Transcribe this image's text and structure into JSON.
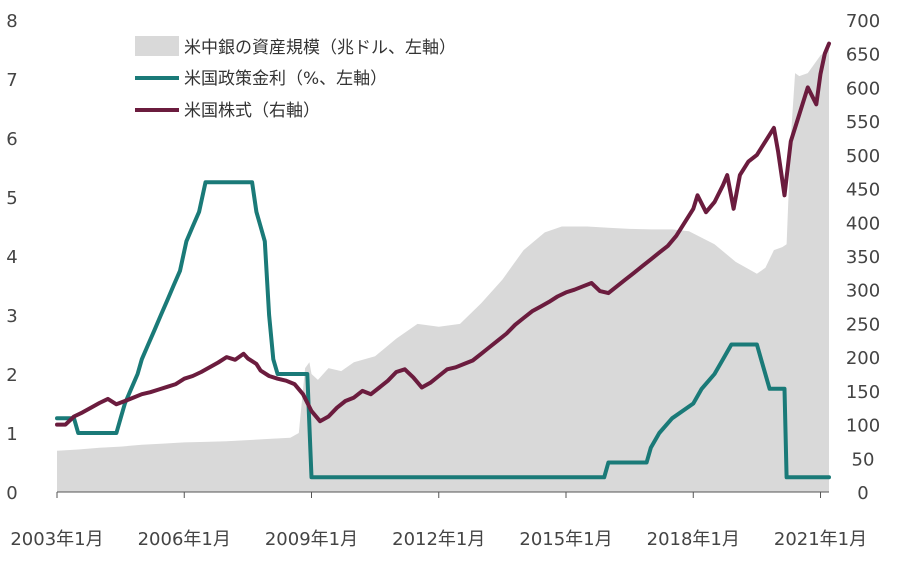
{
  "chart_data": {
    "type": "area",
    "colors": {
      "balance": "#d9d9d9",
      "rate": "#1a7a78",
      "stock": "#6b1c3e"
    },
    "legend": {
      "placement": "top-center",
      "entries": [
        {
          "key": "balance",
          "label": "米中銀の資産規模（兆ドル、左軸）"
        },
        {
          "key": "rate",
          "label": "米国政策金利（%、左軸）"
        },
        {
          "key": "stock",
          "label": "米国株式（右軸）"
        }
      ]
    },
    "y_left": {
      "min": 0,
      "max": 8,
      "ticks": [
        "0",
        "1",
        "2",
        "3",
        "4",
        "5",
        "6",
        "7",
        "8"
      ]
    },
    "y_right": {
      "min": 0,
      "max": 700,
      "ticks": [
        "0",
        "50",
        "100",
        "150",
        "200",
        "250",
        "300",
        "350",
        "400",
        "450",
        "500",
        "550",
        "600",
        "650",
        "700"
      ]
    },
    "x_axis": {
      "min": 2003.0,
      "max": 2021.2,
      "ticks": [
        {
          "value": 2003.0,
          "label": "2003年1月"
        },
        {
          "value": 2006.0,
          "label": "2006年1月"
        },
        {
          "value": 2009.0,
          "label": "2009年1月"
        },
        {
          "value": 2012.0,
          "label": "2012年1月"
        },
        {
          "value": 2015.0,
          "label": "2015年1月"
        },
        {
          "value": 2018.0,
          "label": "2018年1月"
        },
        {
          "value": 2021.0,
          "label": "2021年1月"
        }
      ]
    },
    "grid": false,
    "series": [
      {
        "key": "balance",
        "name": "米中銀の資産規模（兆ドル、左軸）",
        "type": "area",
        "axis": "left",
        "x": [
          2003.0,
          2003.5,
          2004.0,
          2004.5,
          2005.0,
          2005.5,
          2006.0,
          2006.5,
          2007.0,
          2007.5,
          2008.0,
          2008.5,
          2008.7,
          2008.85,
          2008.95,
          2009.0,
          2009.15,
          2009.4,
          2009.7,
          2010.0,
          2010.5,
          2011.0,
          2011.5,
          2012.0,
          2012.5,
          2013.0,
          2013.5,
          2014.0,
          2014.5,
          2014.9,
          2015.5,
          2016.0,
          2016.5,
          2017.0,
          2017.5,
          2017.9,
          2018.5,
          2019.0,
          2019.5,
          2019.7,
          2019.9,
          2020.1,
          2020.2,
          2020.3,
          2020.4,
          2020.5,
          2020.7,
          2021.0,
          2021.2
        ],
        "values": [
          0.7,
          0.72,
          0.75,
          0.77,
          0.8,
          0.82,
          0.84,
          0.85,
          0.86,
          0.88,
          0.9,
          0.92,
          1.0,
          2.1,
          2.2,
          2.0,
          1.9,
          2.1,
          2.05,
          2.2,
          2.3,
          2.6,
          2.85,
          2.8,
          2.85,
          3.2,
          3.6,
          4.1,
          4.4,
          4.5,
          4.5,
          4.48,
          4.46,
          4.45,
          4.45,
          4.42,
          4.2,
          3.9,
          3.7,
          3.8,
          4.1,
          4.15,
          4.2,
          6.0,
          7.1,
          7.05,
          7.1,
          7.4,
          7.5
        ]
      },
      {
        "key": "rate",
        "name": "米国政策金利（%、左軸）",
        "type": "line",
        "axis": "left",
        "x": [
          2003.0,
          2003.4,
          2003.5,
          2004.4,
          2004.5,
          2004.6,
          2004.75,
          2004.9,
          2005.0,
          2005.15,
          2005.3,
          2005.45,
          2005.6,
          2005.75,
          2005.9,
          2006.05,
          2006.2,
          2006.35,
          2006.5,
          2007.6,
          2007.7,
          2007.8,
          2007.9,
          2008.0,
          2008.1,
          2008.2,
          2008.3,
          2008.9,
          2009.0,
          2015.9,
          2016.0,
          2016.9,
          2017.0,
          2017.2,
          2017.5,
          2018.0,
          2018.2,
          2018.5,
          2018.7,
          2018.9,
          2019.5,
          2019.6,
          2019.8,
          2020.15,
          2020.2,
          2021.2
        ],
        "values": [
          1.25,
          1.25,
          1.0,
          1.0,
          1.25,
          1.5,
          1.75,
          2.0,
          2.25,
          2.5,
          2.75,
          3.0,
          3.25,
          3.5,
          3.75,
          4.25,
          4.5,
          4.75,
          5.25,
          5.25,
          4.75,
          4.5,
          4.25,
          3.0,
          2.25,
          2.0,
          2.0,
          2.0,
          0.25,
          0.25,
          0.5,
          0.5,
          0.75,
          1.0,
          1.25,
          1.5,
          1.75,
          2.0,
          2.25,
          2.5,
          2.5,
          2.25,
          1.75,
          1.75,
          0.25,
          0.25
        ]
      },
      {
        "key": "stock",
        "name": "米国株式（右軸）",
        "type": "line",
        "axis": "right",
        "x": [
          2003.0,
          2003.2,
          2003.4,
          2003.6,
          2003.8,
          2004.0,
          2004.2,
          2004.4,
          2004.6,
          2004.8,
          2005.0,
          2005.2,
          2005.4,
          2005.6,
          2005.8,
          2006.0,
          2006.2,
          2006.4,
          2006.6,
          2006.8,
          2007.0,
          2007.2,
          2007.4,
          2007.5,
          2007.7,
          2007.8,
          2008.0,
          2008.2,
          2008.4,
          2008.6,
          2008.8,
          2009.0,
          2009.2,
          2009.4,
          2009.6,
          2009.8,
          2010.0,
          2010.2,
          2010.4,
          2010.6,
          2010.8,
          2011.0,
          2011.2,
          2011.4,
          2011.6,
          2011.8,
          2012.0,
          2012.2,
          2012.4,
          2012.6,
          2012.8,
          2013.0,
          2013.2,
          2013.4,
          2013.6,
          2013.8,
          2014.0,
          2014.2,
          2014.4,
          2014.6,
          2014.8,
          2015.0,
          2015.2,
          2015.4,
          2015.6,
          2015.8,
          2016.0,
          2016.2,
          2016.4,
          2016.6,
          2016.8,
          2017.0,
          2017.2,
          2017.4,
          2017.6,
          2017.8,
          2018.0,
          2018.1,
          2018.3,
          2018.5,
          2018.7,
          2018.8,
          2018.95,
          2019.1,
          2019.3,
          2019.5,
          2019.7,
          2019.9,
          2020.0,
          2020.15,
          2020.3,
          2020.5,
          2020.7,
          2020.9,
          2021.0,
          2021.1,
          2021.2
        ],
        "values": [
          100,
          100,
          112,
          118,
          125,
          132,
          138,
          130,
          135,
          140,
          145,
          148,
          152,
          156,
          160,
          168,
          172,
          178,
          185,
          192,
          200,
          196,
          205,
          198,
          190,
          180,
          172,
          168,
          165,
          160,
          145,
          120,
          105,
          112,
          125,
          135,
          140,
          150,
          145,
          155,
          165,
          178,
          182,
          170,
          155,
          162,
          172,
          182,
          185,
          190,
          195,
          205,
          215,
          225,
          235,
          248,
          258,
          268,
          275,
          282,
          290,
          296,
          300,
          305,
          310,
          298,
          295,
          305,
          315,
          325,
          335,
          345,
          355,
          365,
          380,
          400,
          420,
          440,
          415,
          430,
          455,
          470,
          420,
          470,
          490,
          500,
          520,
          540,
          505,
          440,
          520,
          560,
          600,
          575,
          620,
          650,
          665
        ]
      }
    ]
  }
}
